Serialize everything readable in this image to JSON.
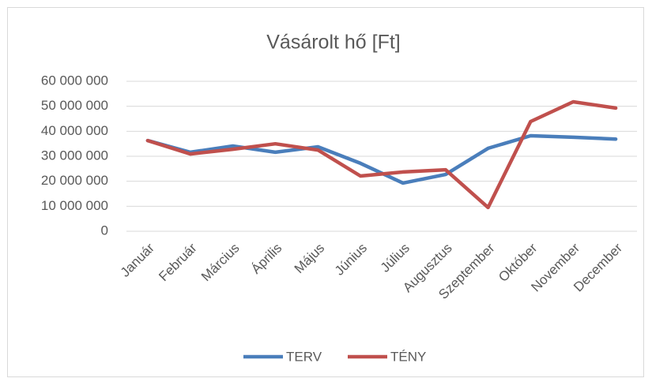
{
  "chart_data": {
    "type": "line",
    "title": "Vásárolt hő [Ft]",
    "categories": [
      "Január",
      "Február",
      "Március",
      "Április",
      "Május",
      "Június",
      "Július",
      "Augusztus",
      "Szeptember",
      "Október",
      "November",
      "December"
    ],
    "series": [
      {
        "name": "TERV",
        "color": "#4a7ebb",
        "values": [
          36300000,
          31600000,
          34100000,
          31600000,
          33800000,
          27200000,
          19300000,
          22700000,
          33200000,
          38200000,
          37600000,
          36900000
        ]
      },
      {
        "name": "TÉNY",
        "color": "#c0504d",
        "values": [
          36300000,
          30900000,
          32800000,
          35000000,
          32500000,
          22100000,
          23700000,
          24600000,
          9500000,
          43900000,
          51800000,
          49300000
        ]
      }
    ],
    "ylim": [
      0,
      60000000
    ],
    "yticks": [
      0,
      {
        "value": 10000000,
        "label": "10 000 000"
      },
      {
        "value": 20000000,
        "label": "20 000 000"
      },
      {
        "value": 30000000,
        "label": "30 000 000"
      },
      {
        "value": 40000000,
        "label": "40 000 000"
      },
      {
        "value": 50000000,
        "label": "50 000 000"
      },
      {
        "value": 60000000,
        "label": "60 000 000"
      }
    ],
    "grid": true,
    "legend": "bottom"
  }
}
